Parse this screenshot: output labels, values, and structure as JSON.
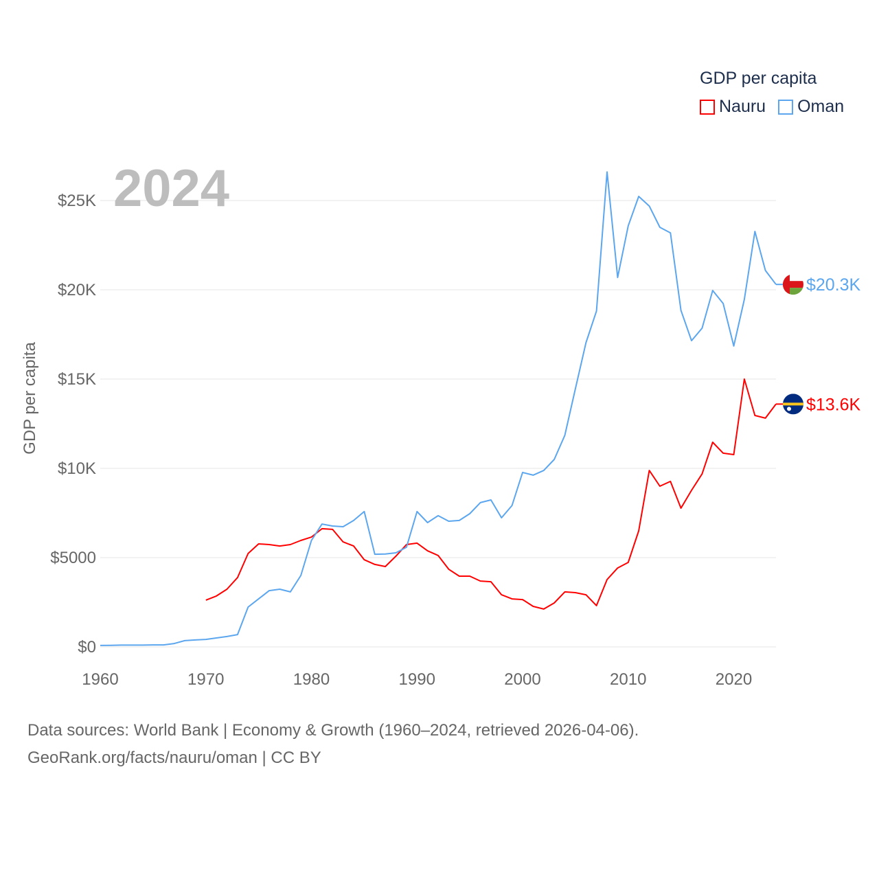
{
  "chart_data": {
    "type": "line",
    "title": "2024",
    "ylabel": "GDP per capita",
    "xlabel": "",
    "xlim": [
      1960,
      2024
    ],
    "ylim": [
      0,
      27000
    ],
    "grid": true,
    "x_ticks": [
      1960,
      1970,
      1980,
      1990,
      2000,
      2010,
      2020
    ],
    "x_tick_labels": [
      "1960",
      "1970",
      "1980",
      "1990",
      "2000",
      "2010",
      "2020"
    ],
    "y_ticks": [
      0,
      5000,
      10000,
      15000,
      20000,
      25000
    ],
    "y_tick_labels": [
      "$0",
      "$5000",
      "$10K",
      "$15K",
      "$20K",
      "$25K"
    ],
    "legend": {
      "title": "GDP per capita",
      "placement": "top-right"
    },
    "series": [
      {
        "name": "Nauru",
        "color": "#ff0000",
        "end_label": "$13.6K",
        "flag": "nauru-flag",
        "x_start": 1970,
        "values": [
          2620,
          2850,
          3230,
          3880,
          5230,
          5770,
          5730,
          5650,
          5730,
          5960,
          6150,
          6620,
          6580,
          5880,
          5650,
          4880,
          4620,
          4500,
          5080,
          5730,
          5810,
          5380,
          5120,
          4350,
          3960,
          3960,
          3690,
          3650,
          2920,
          2690,
          2650,
          2270,
          2120,
          2460,
          3080,
          3040,
          2920,
          2310,
          3770,
          4420,
          4730,
          6500,
          9880,
          9000,
          9270,
          7770,
          8770,
          9690,
          11460,
          10850,
          10770,
          15000,
          12960,
          12810,
          13600
        ]
      },
      {
        "name": "Oman",
        "color": "#5ba6ee",
        "end_label": "$20.3K",
        "flag": "oman-flag",
        "x_start": 1960,
        "values": [
          80,
          90,
          100,
          100,
          100,
          110,
          110,
          190,
          350,
          390,
          420,
          500,
          580,
          690,
          2230,
          2690,
          3150,
          3230,
          3080,
          4000,
          5960,
          6880,
          6770,
          6730,
          7080,
          7580,
          5190,
          5200,
          5270,
          5580,
          7580,
          6960,
          7350,
          7040,
          7080,
          7460,
          8080,
          8230,
          7230,
          7920,
          9770,
          9620,
          9880,
          10500,
          11850,
          14460,
          17040,
          18810,
          26600,
          20690,
          23580,
          25230,
          24690,
          23500,
          23190,
          18850,
          17150,
          17850,
          19960,
          19230,
          16850,
          19460,
          23270,
          21080,
          20300
        ]
      }
    ]
  },
  "source": {
    "line1": "Data sources: World Bank | Economy & Growth (1960–2024, retrieved 2026-04-06).",
    "line2": "GeoRank.org/facts/nauru/oman | CC BY"
  }
}
